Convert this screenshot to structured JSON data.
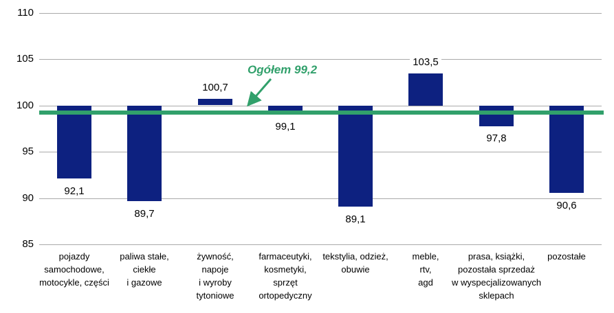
{
  "chart_data": {
    "type": "bar",
    "title": "",
    "xlabel": "",
    "ylabel": "",
    "categories": [
      "pojazdy samochodowe, motocykle, części",
      "paliwa stałe, ciekłe i gazowe",
      "żywność, napoje i wyroby tytoniowe",
      "farmaceutyki, kosmetyki, sprzęt ortopedyczny",
      "tekstylia, odzież, obuwie",
      "meble, rtv, agd",
      "prasa, książki, pozostała sprzedaż w wyspecjalizowanych sklepach",
      "pozostałe"
    ],
    "categories_lines": [
      [
        "pojazdy",
        "samochodowe,",
        "motocykle, części"
      ],
      [
        "paliwa stałe,",
        "ciekłe",
        "i gazowe"
      ],
      [
        "żywność,",
        "napoje",
        "i wyroby",
        "tytoniowe"
      ],
      [
        "farmaceutyki,",
        "kosmetyki,",
        "sprzęt",
        "ortopedyczny"
      ],
      [
        "tekstylia, odzież,",
        "obuwie"
      ],
      [
        "meble,",
        "rtv,",
        "agd"
      ],
      [
        "prasa, książki,",
        "pozostała sprzedaż",
        "w wyspecjalizowanych",
        "sklepach"
      ],
      [
        "pozostałe"
      ]
    ],
    "values": [
      92.1,
      89.7,
      100.7,
      99.1,
      89.1,
      103.5,
      97.8,
      90.6
    ],
    "value_labels": [
      "92,1",
      "89,7",
      "100,7",
      "99,1",
      "89,1",
      "103,5",
      "97,8",
      "90,6"
    ],
    "baseline": 100,
    "ylim": [
      85,
      110
    ],
    "yticks": [
      85,
      90,
      95,
      100,
      105,
      110
    ],
    "ytick_labels": [
      "85",
      "90",
      "95",
      "100",
      "105",
      "110"
    ],
    "grid": true,
    "legend": "none",
    "reference_line": {
      "value": 99.2,
      "label": "Ogółem 99,2"
    },
    "colors": {
      "bar": "#0d2180",
      "reference": "#31a06b",
      "gridline": "#a9a9a9",
      "text": "#000000",
      "background": "#ffffff"
    }
  }
}
